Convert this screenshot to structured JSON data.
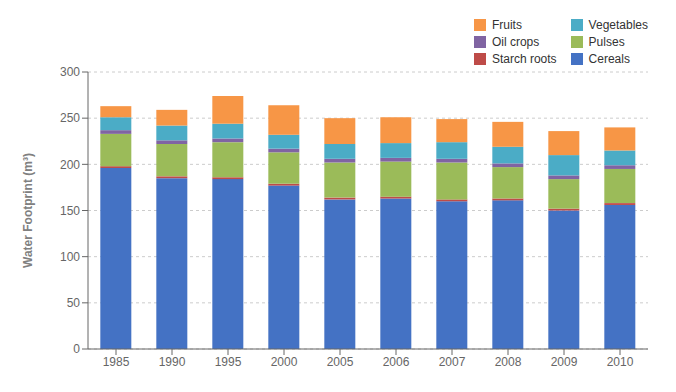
{
  "chart_data": {
    "type": "bar",
    "stacked": true,
    "categories": [
      "1985",
      "1990",
      "1995",
      "2000",
      "2005",
      "2006",
      "2007",
      "2008",
      "2009",
      "2010"
    ],
    "series": [
      {
        "name": "Cereals",
        "color": "#4472C4",
        "values": [
          196,
          185,
          184,
          177,
          162,
          163,
          160,
          161,
          150,
          156
        ]
      },
      {
        "name": "Starch roots",
        "color": "#BE4B48",
        "values": [
          2,
          2,
          2,
          2,
          2,
          2,
          2,
          2,
          2,
          2
        ]
      },
      {
        "name": "Pulses",
        "color": "#9BBB59",
        "values": [
          35,
          35,
          38,
          34,
          38,
          38,
          40,
          34,
          32,
          37
        ]
      },
      {
        "name": "Oil crops",
        "color": "#8064A2",
        "values": [
          4,
          4,
          4,
          4,
          4,
          4,
          4,
          4,
          4,
          4
        ]
      },
      {
        "name": "Vegetables",
        "color": "#4BACC6",
        "values": [
          14,
          16,
          16,
          15,
          16,
          16,
          18,
          18,
          22,
          16
        ]
      },
      {
        "name": "Fruits",
        "color": "#F79646",
        "values": [
          12,
          17,
          30,
          32,
          28,
          28,
          25,
          27,
          26,
          25
        ]
      }
    ],
    "ylabel": "Water Footprint (m³)",
    "ylim": [
      0,
      300
    ],
    "yticks": [
      0,
      50,
      100,
      150,
      200,
      250,
      300
    ],
    "grid": true,
    "legend": "upper right"
  }
}
